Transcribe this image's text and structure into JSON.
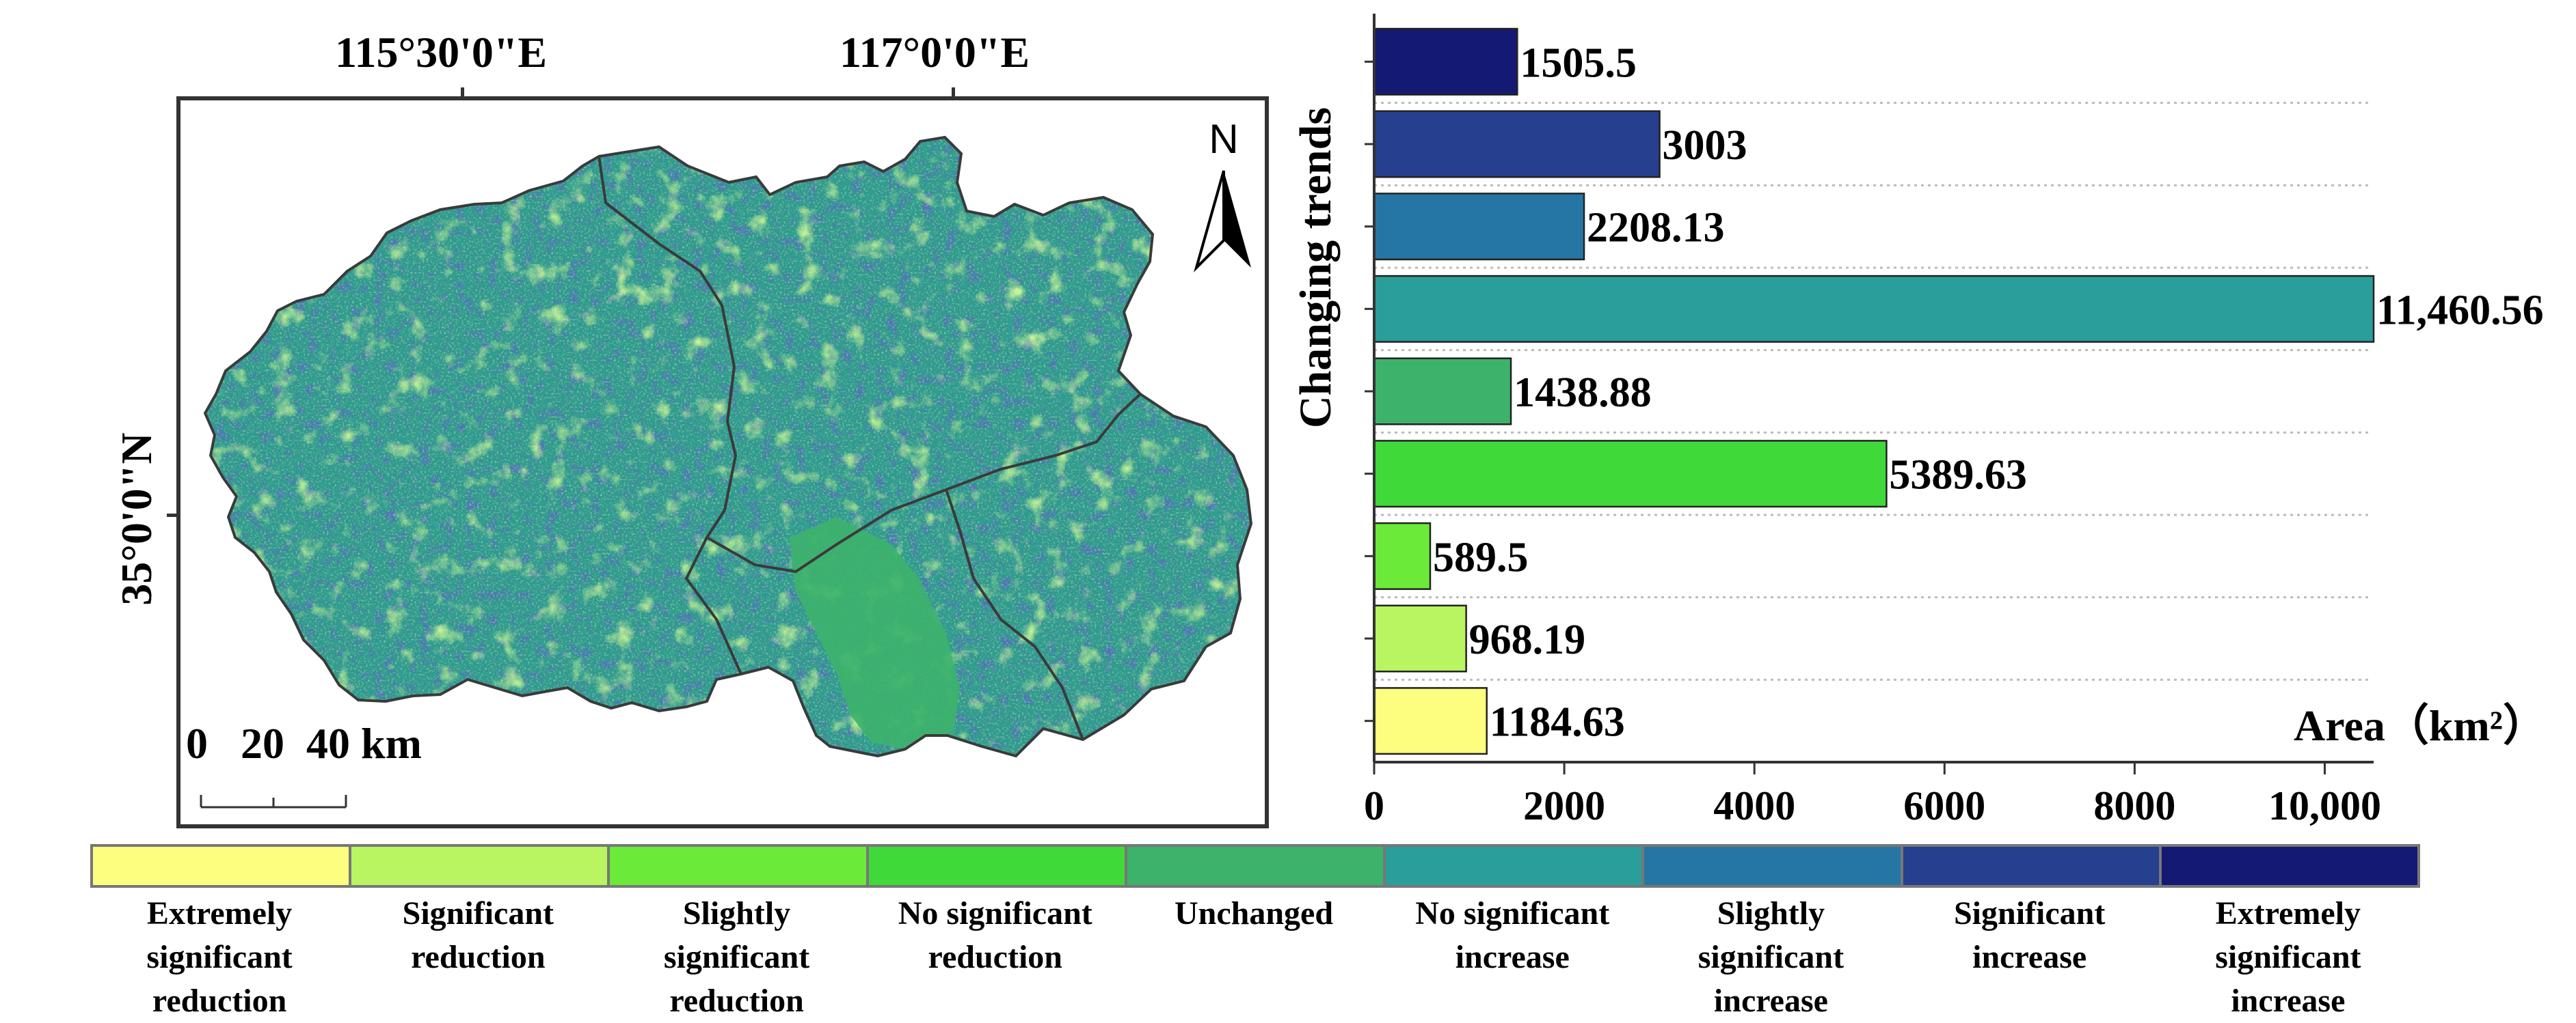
{
  "map": {
    "lon_labels": [
      "115°30'0\"E",
      "117°0'0\"E"
    ],
    "lat_label": "35°0'0\"N",
    "north_label": "N",
    "scale_label": "0   20  40 km"
  },
  "chart_data": {
    "type": "bar",
    "orientation": "horizontal",
    "ylabel": "Changing trends",
    "xlabel": "Area（km²）",
    "xlim": [
      0,
      10500
    ],
    "xticks": [
      0,
      2000,
      4000,
      6000,
      8000,
      10000
    ],
    "xtick_labels": [
      "0",
      "2000",
      "4000",
      "6000",
      "8000",
      "10,000"
    ],
    "grid": "horizontal dotted",
    "categories": [
      "Extremely significant increase",
      "Significant increase",
      "Slightly significant increase",
      "No significant increase",
      "Unchanged",
      "No significant reduction",
      "Slightly significant reduction",
      "Significant reduction",
      "Extremely significant reduction"
    ],
    "values": [
      1505.5,
      3003,
      2208.13,
      11460.56,
      1438.88,
      5389.63,
      589.5,
      968.19,
      1184.63
    ],
    "value_labels": [
      "1505.5",
      "3003",
      "2208.13",
      "11,460.56",
      "1438.88",
      "5389.63",
      "589.5",
      "968.19",
      "1184.63"
    ],
    "colors": [
      "#141a73",
      "#273f8f",
      "#2676a5",
      "#2a9e9b",
      "#3db26b",
      "#3fd93a",
      "#6bea3a",
      "#b8f560",
      "#fdfd7f"
    ]
  },
  "legend": {
    "items": [
      {
        "label": "Extremely significant reduction",
        "color": "#fdfd7f"
      },
      {
        "label": "Significant reduction",
        "color": "#b8f560"
      },
      {
        "label": "Slightly significant reduction",
        "color": "#6bea3a"
      },
      {
        "label": "No significant reduction",
        "color": "#3fd93a"
      },
      {
        "label": "Unchanged",
        "color": "#3db26b"
      },
      {
        "label": "No significant increase",
        "color": "#2a9e9b"
      },
      {
        "label": "Slightly significant increase",
        "color": "#2676a5"
      },
      {
        "label": "Significant increase",
        "color": "#273f8f"
      },
      {
        "label": "Extremely significant increase",
        "color": "#141a73"
      }
    ]
  }
}
